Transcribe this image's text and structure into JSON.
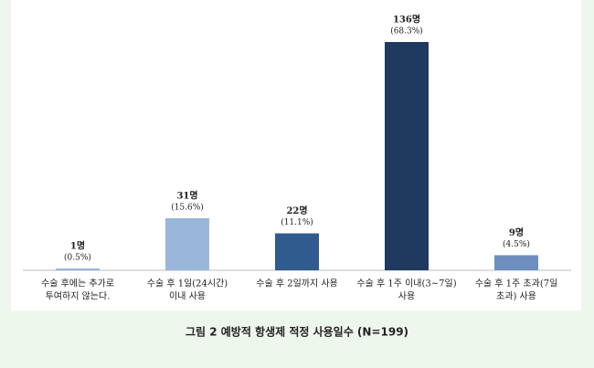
{
  "chart_data": {
    "type": "bar",
    "caption": "그림 2 예방적 항생제 적정 사용일수 (N=199)",
    "categories": [
      [
        "수술 후에는 추가로",
        "투여하지 않는다."
      ],
      [
        "수술 후 1일(24시간)",
        "이내 사용"
      ],
      [
        "수술 후 2일까지 사용",
        ""
      ],
      [
        "수술 후 1주 이내(3~7일)",
        "사용"
      ],
      [
        "수술 후 1주 초과(7일",
        "초과) 사용"
      ]
    ],
    "values": [
      1,
      31,
      22,
      136,
      9
    ],
    "value_labels": [
      "1명",
      "31명",
      "22명",
      "136명",
      "9명"
    ],
    "percent_labels": [
      "(0.5%)",
      "(15.6%)",
      "(11.1%)",
      "(68.3%)",
      "(4.5%)"
    ],
    "colors": [
      "#8fb0d8",
      "#9ab6da",
      "#2f5b8e",
      "#1f3a5e",
      "#6f8fc0"
    ]
  }
}
